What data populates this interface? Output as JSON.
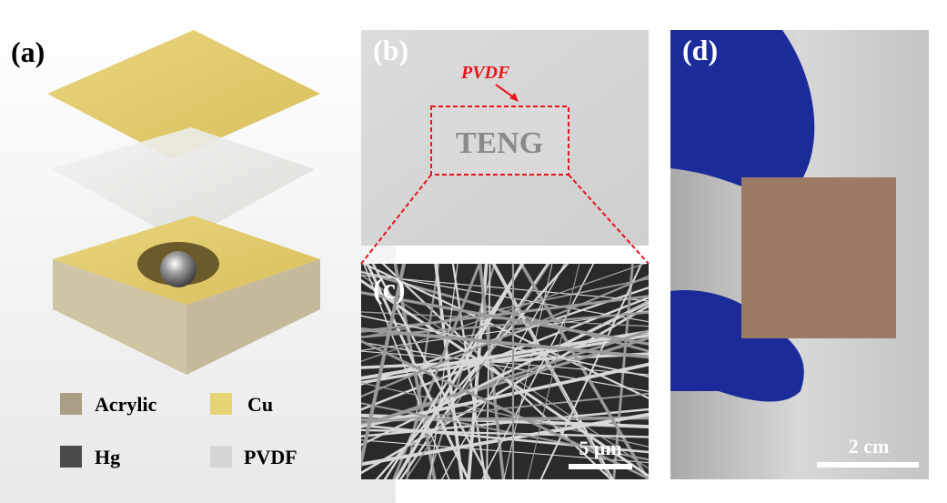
{
  "panels": [
    {
      "label": "(a)",
      "legend": [
        "Acrylic",
        "Cu",
        "Hg",
        "PVDF"
      ]
    },
    {
      "label": "(b)",
      "annotation": "PVDF",
      "text": "TENG"
    },
    {
      "label": "(c)",
      "scale_bar": "5 μm"
    },
    {
      "label": "(d)",
      "scale_bar": "2 cm"
    }
  ]
}
